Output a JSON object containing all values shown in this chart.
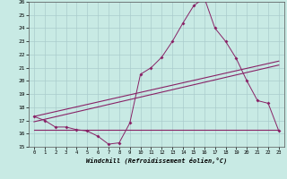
{
  "xlabel": "Windchill (Refroidissement éolien,°C)",
  "bg_color": "#c8eae4",
  "grid_color": "#aacccc",
  "line_color": "#882266",
  "xmin": -0.5,
  "xmax": 23.5,
  "ymin": 15,
  "ymax": 26,
  "yticks": [
    15,
    16,
    17,
    18,
    19,
    20,
    21,
    22,
    23,
    24,
    25,
    26
  ],
  "xticks": [
    0,
    1,
    2,
    3,
    4,
    5,
    6,
    7,
    8,
    9,
    10,
    11,
    12,
    13,
    14,
    15,
    16,
    17,
    18,
    19,
    20,
    21,
    22,
    23
  ],
  "series1_x": [
    0,
    1,
    2,
    3,
    4,
    5,
    6,
    7,
    8,
    9,
    10,
    11,
    12,
    13,
    14,
    15,
    16,
    17,
    18,
    19,
    20,
    21,
    22,
    23
  ],
  "series1_y": [
    17.3,
    17.0,
    16.5,
    16.5,
    16.3,
    16.2,
    15.8,
    15.2,
    15.3,
    16.8,
    20.5,
    21.0,
    21.8,
    23.0,
    24.4,
    25.7,
    26.3,
    24.0,
    23.0,
    21.7,
    20.0,
    18.5,
    18.3,
    16.2
  ],
  "series2_x": [
    0,
    23
  ],
  "series2_y": [
    17.3,
    21.5
  ],
  "series3_x": [
    0,
    23
  ],
  "series3_y": [
    16.9,
    21.2
  ],
  "series4_x": [
    0,
    23
  ],
  "series4_y": [
    16.3,
    16.3
  ]
}
